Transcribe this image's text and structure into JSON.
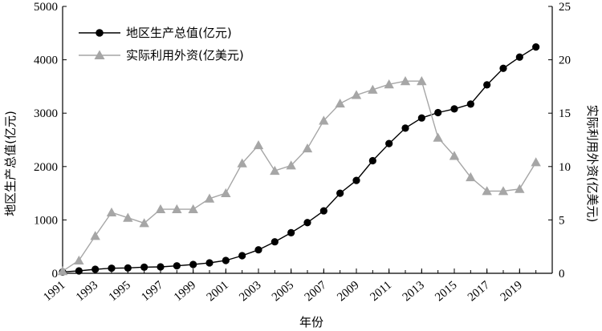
{
  "chart_data": {
    "type": "line",
    "title": "",
    "xlabel": "年份",
    "ylabel_left": "地区生产总值(亿元)",
    "ylabel_right": "实际利用外资(亿美元)",
    "x": [
      1991,
      1992,
      1993,
      1994,
      1995,
      1996,
      1997,
      1998,
      1999,
      2000,
      2001,
      2002,
      2003,
      2004,
      2005,
      2006,
      2007,
      2008,
      2009,
      2010,
      2011,
      2012,
      2013,
      2014,
      2015,
      2016,
      2017,
      2018,
      2019,
      2020
    ],
    "x_ticks": [
      "1991",
      "1993",
      "1995",
      "1997",
      "1999",
      "2001",
      "2003",
      "2005",
      "2007",
      "2009",
      "2011",
      "2013",
      "2015",
      "2017",
      "2019"
    ],
    "xlim": [
      1991,
      2021
    ],
    "ylim_left": [
      0,
      5000
    ],
    "yticks_left": [
      "0",
      "1000",
      "2000",
      "3000",
      "4000",
      "5000"
    ],
    "ylim_right": [
      0,
      25
    ],
    "yticks_right": [
      "0",
      "5",
      "10",
      "15",
      "20",
      "25"
    ],
    "grid": false,
    "legend_position": "top-left",
    "series": [
      {
        "name": "地区生产总值(亿元)",
        "axis": "left",
        "color": "#000000",
        "marker": "circle",
        "values": [
          25,
          45,
          75,
          95,
          100,
          115,
          120,
          140,
          165,
          195,
          240,
          330,
          440,
          590,
          760,
          950,
          1170,
          1500,
          1740,
          2110,
          2430,
          2720,
          2910,
          3010,
          3080,
          3170,
          3530,
          3840,
          4050,
          4240
        ]
      },
      {
        "name": "实际利用外资(亿美元)",
        "axis": "right",
        "color": "#a6a6a6",
        "marker": "triangle",
        "values": [
          0.2,
          1.2,
          3.5,
          5.7,
          5.2,
          4.7,
          6.0,
          6.0,
          6.0,
          7.0,
          7.5,
          10.3,
          12.0,
          9.6,
          10.1,
          11.7,
          14.3,
          15.9,
          16.7,
          17.2,
          17.7,
          18.0,
          18.0,
          12.7,
          11.0,
          9.0,
          7.7,
          7.7,
          7.9,
          10.4
        ]
      }
    ]
  }
}
